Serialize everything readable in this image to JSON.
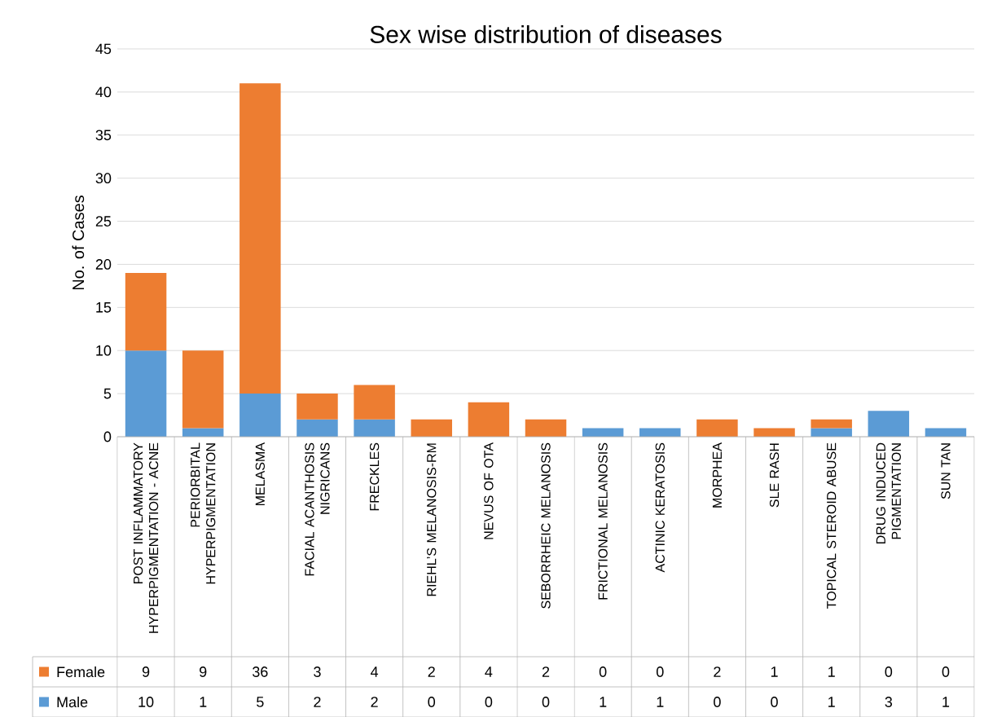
{
  "chart_data": {
    "type": "bar",
    "title": "Sex wise distribution of diseases",
    "ylabel": "No. of Cases",
    "categories": [
      "POST INFLAMMATORY HYPERPIGMENTATION - ACNE",
      "PERIORBITAL HYPERPIGMENTATION",
      "MELASMA",
      "FACIAL ACANTHOSIS NIGRICANS",
      "FRECKLES",
      "RIEHL’S MELANOSIS-RM",
      "NEVUS OF OTA",
      "SEBORRHEIC MELANOSIS",
      "FRICTIONAL MELANOSIS",
      "ACTINIC KERATOSIS",
      "MORPHEA",
      "SLE RASH",
      "TOPICAL STEROID ABUSE",
      "DRUG INDUCED PIGMENTATION",
      "SUN TAN"
    ],
    "series": [
      {
        "name": "Male",
        "color": "#5b9bd5",
        "values": [
          10,
          1,
          5,
          2,
          2,
          0,
          0,
          0,
          1,
          1,
          0,
          0,
          1,
          3,
          1
        ]
      },
      {
        "name": "Female",
        "color": "#ed7d31",
        "values": [
          9,
          9,
          36,
          3,
          4,
          2,
          4,
          2,
          0,
          0,
          2,
          1,
          1,
          0,
          0
        ]
      }
    ],
    "stacked": true,
    "data_labels": true,
    "legend": "bottom",
    "grid": "y",
    "ylim": [
      0,
      45
    ],
    "yticks": [
      0,
      5,
      10,
      15,
      20,
      25,
      30,
      35,
      40,
      45
    ]
  }
}
